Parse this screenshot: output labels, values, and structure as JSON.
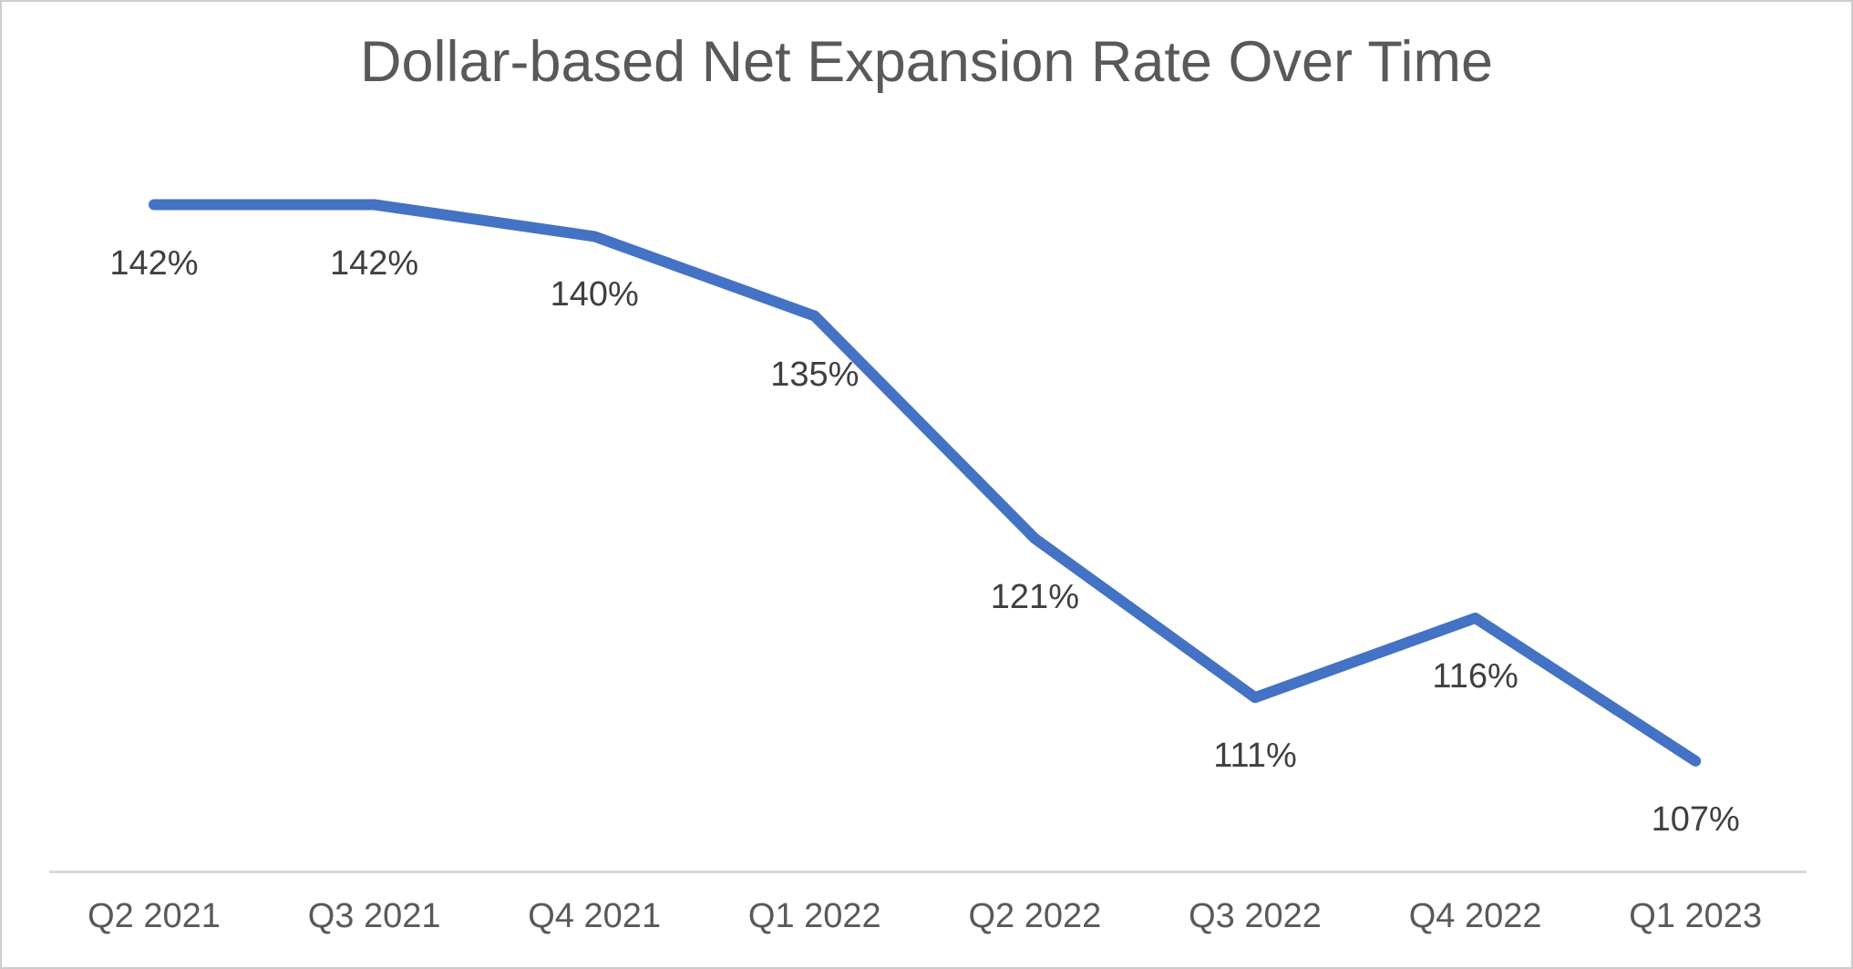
{
  "page": {
    "background": "#ffffff",
    "border_color": "#cdcdcd"
  },
  "chart_data": {
    "type": "line",
    "title": "Dollar-based Net Expansion Rate Over Time",
    "categories": [
      "Q2 2021",
      "Q3 2021",
      "Q4 2021",
      "Q1 2022",
      "Q2 2022",
      "Q3 2022",
      "Q4 2022",
      "Q1 2023"
    ],
    "values": [
      142,
      142,
      140,
      135,
      121,
      111,
      116,
      107
    ],
    "point_labels": [
      "142%",
      "142%",
      "140%",
      "135%",
      "121%",
      "111%",
      "116%",
      "107%"
    ],
    "unit": "%",
    "xlabel": "",
    "ylabel": "",
    "ylim": [
      100,
      145
    ],
    "grid": false,
    "legend_position": "none",
    "data_labels_position": "below",
    "line_color": "#4472C4",
    "line_width": 12,
    "title_color": "#595959",
    "data_label_color": "#3f3f3f",
    "axis_label_color": "#595959",
    "axis_line_color": "#d9d9d9"
  }
}
